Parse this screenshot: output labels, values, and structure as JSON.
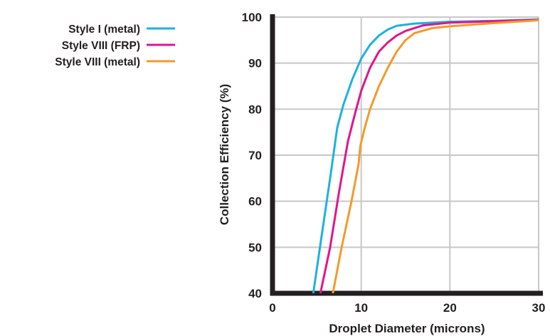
{
  "chart_data": {
    "type": "line",
    "title": "",
    "xlabel": "Droplet Diameter (microns)",
    "ylabel": "Collection Efficiency (%)",
    "xlim": [
      0,
      30
    ],
    "ylim": [
      40,
      100
    ],
    "x_ticks": [
      "0",
      "10",
      "20",
      "30"
    ],
    "y_ticks": [
      "40",
      "50",
      "60",
      "70",
      "80",
      "90",
      "100"
    ],
    "grid": true,
    "legend_position": "top-left",
    "series": [
      {
        "name": "Style I (metal)",
        "color": "#1fb0e0",
        "points": [
          [
            4.6,
            40
          ],
          [
            5.5,
            52
          ],
          [
            6.5,
            65
          ],
          [
            7.3,
            76
          ],
          [
            8,
            81
          ],
          [
            9,
            86.5
          ],
          [
            10,
            91
          ],
          [
            11,
            94
          ],
          [
            12,
            96
          ],
          [
            13,
            97.3
          ],
          [
            14,
            98.1
          ],
          [
            16,
            98.6
          ],
          [
            20,
            99
          ],
          [
            25,
            99.2
          ],
          [
            30,
            99.5
          ]
        ]
      },
      {
        "name": "Style VIII (FRP)",
        "color": "#e0168a",
        "points": [
          [
            5.4,
            40
          ],
          [
            6.5,
            50
          ],
          [
            7.5,
            62
          ],
          [
            8.5,
            73
          ],
          [
            9.3,
            79
          ],
          [
            10,
            84
          ],
          [
            11,
            89
          ],
          [
            12,
            92.5
          ],
          [
            13,
            94.5
          ],
          [
            14,
            96
          ],
          [
            15,
            97
          ],
          [
            17,
            98.2
          ],
          [
            20,
            98.8
          ],
          [
            25,
            99.1
          ],
          [
            30,
            99.4
          ]
        ]
      },
      {
        "name": "Style VIII (metal)",
        "color": "#f39a2b",
        "points": [
          [
            6.8,
            40
          ],
          [
            7.8,
            50
          ],
          [
            8.9,
            60
          ],
          [
            9.7,
            68
          ],
          [
            9.9,
            72
          ],
          [
            10.4,
            76
          ],
          [
            11,
            80
          ],
          [
            12,
            85
          ],
          [
            13,
            89
          ],
          [
            14,
            92.5
          ],
          [
            15,
            95
          ],
          [
            16,
            96.5
          ],
          [
            18,
            97.6
          ],
          [
            20,
            98
          ],
          [
            25,
            98.7
          ],
          [
            30,
            99.3
          ]
        ]
      }
    ]
  }
}
